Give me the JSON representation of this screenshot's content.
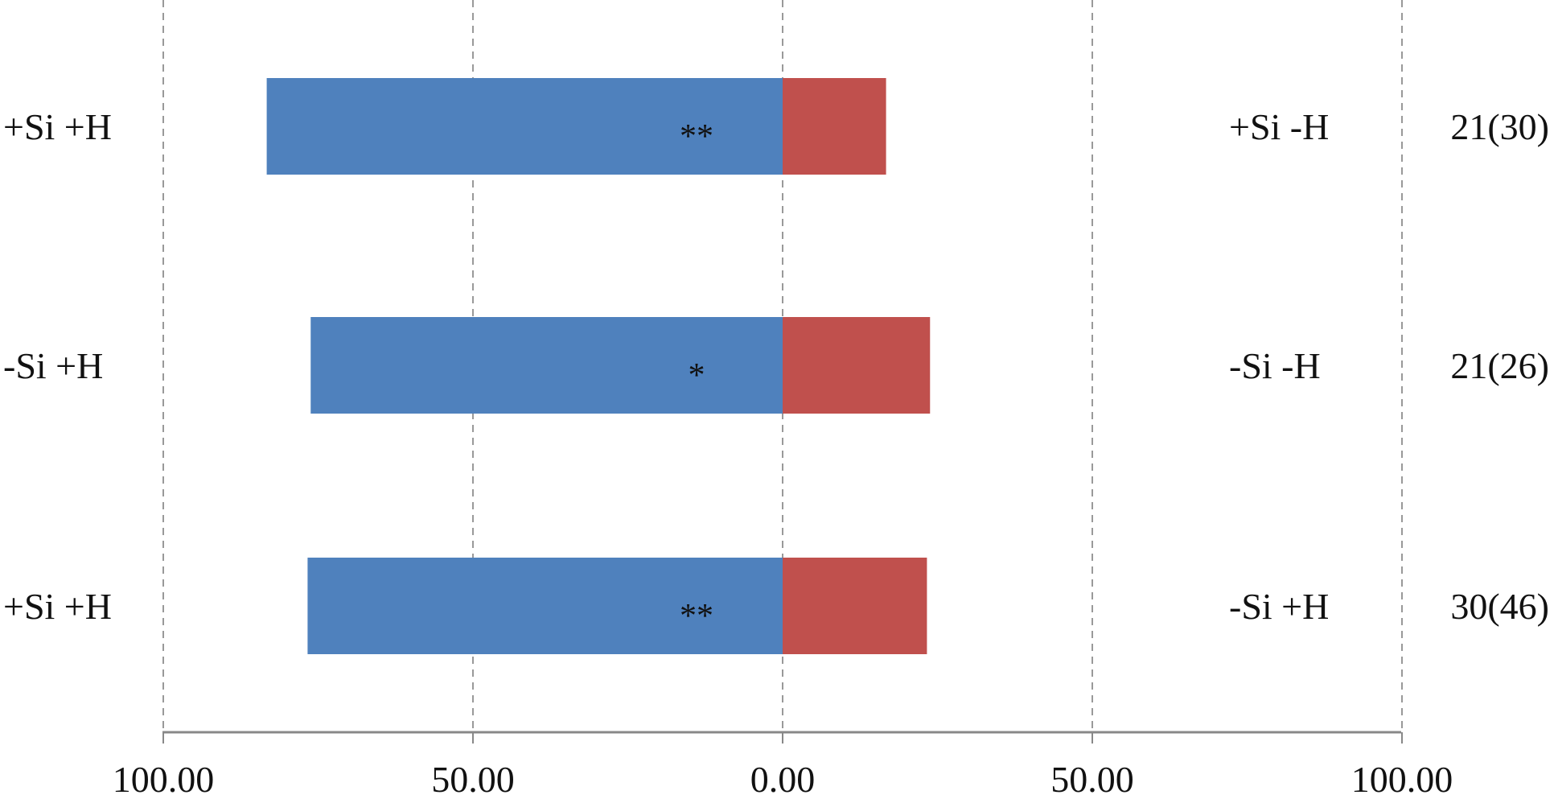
{
  "chart_data": {
    "type": "bar",
    "orientation": "horizontal-diverging",
    "xlim": [
      -100,
      100
    ],
    "ticks": [
      {
        "value": -100,
        "label": "100.00"
      },
      {
        "value": -50,
        "label": "50.00"
      },
      {
        "value": 0,
        "label": "0.00"
      },
      {
        "value": 50,
        "label": "50.00"
      },
      {
        "value": 100,
        "label": "100.00"
      }
    ],
    "grid": "vertical-dashed",
    "rows": [
      {
        "left_label": "+Si +H",
        "right_label": "+Si -H",
        "count": "21(30)",
        "left_value": 83.3,
        "right_value": 16.7,
        "significance": "**"
      },
      {
        "left_label": "-Si +H",
        "right_label": "-Si -H",
        "count": "21(26)",
        "left_value": 76.2,
        "right_value": 23.8,
        "significance": "*"
      },
      {
        "left_label": "+Si +H",
        "right_label": "-Si +H",
        "count": "30(46)",
        "left_value": 76.7,
        "right_value": 23.3,
        "significance": "**"
      }
    ],
    "colors": {
      "left": "#4f81bd",
      "right": "#c0504d",
      "grid": "#999999",
      "axis": "#888888",
      "text": "#111111"
    }
  }
}
